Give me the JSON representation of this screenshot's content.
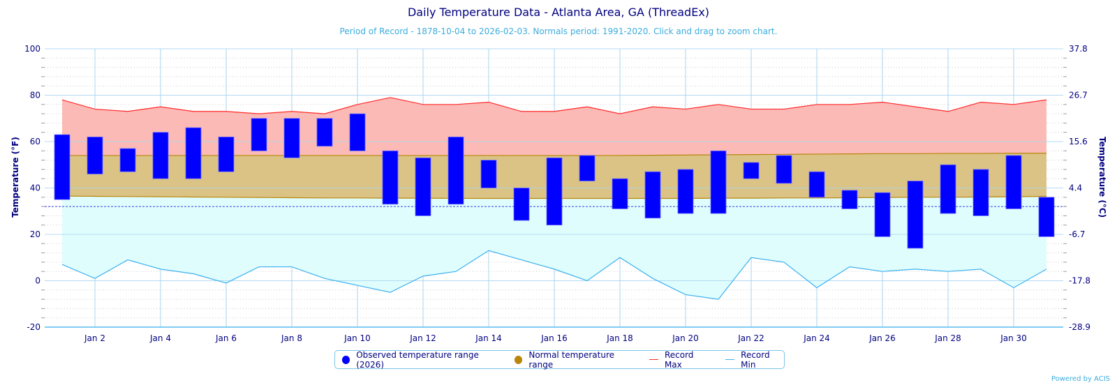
{
  "header": {
    "title": "Daily Temperature Data - Atlanta Area, GA (ThreadEx)",
    "subtitle": "Period of Record - 1878-10-04 to 2026-02-03. Normals period: 1991-2020. Click and drag to zoom chart."
  },
  "footer": {
    "credit": "Powered by ACIS"
  },
  "colors": {
    "observed": "#0000ff",
    "normal": "#b8860b",
    "normal_fill": "#dac384",
    "record_max": "#ff2a2a",
    "record_max_fill": "#fbbab6",
    "record_min": "#3bb0f0",
    "record_min_fill": "#e0fdfd",
    "text": "#000080",
    "freezing": "#3344dd"
  },
  "chart_data": {
    "type": "bar",
    "title": "Daily Temperature Data - Atlanta Area, GA (ThreadEx)",
    "xlabel": "",
    "ylabel": "Temperature (°F)",
    "ylabel_right": "Temperature (°C)",
    "ylim": [
      -20,
      100
    ],
    "yticks": [
      100,
      80,
      60,
      40,
      20,
      0,
      -20
    ],
    "yticks_right": [
      "37.8",
      "26.7",
      "15.6",
      "4.4",
      "-6.7",
      "-17.8",
      "-28.9"
    ],
    "xtick_labels": [
      "Jan 2",
      "Jan 4",
      "Jan 6",
      "Jan 8",
      "Jan 10",
      "Jan 12",
      "Jan 14",
      "Jan 16",
      "Jan 18",
      "Jan 20",
      "Jan 22",
      "Jan 24",
      "Jan 26",
      "Jan 28",
      "Jan 30"
    ],
    "xtick_days": [
      2,
      4,
      6,
      8,
      10,
      12,
      14,
      16,
      18,
      20,
      22,
      24,
      26,
      28,
      30
    ],
    "days": [
      1,
      2,
      3,
      4,
      5,
      6,
      7,
      8,
      9,
      10,
      11,
      12,
      13,
      14,
      15,
      16,
      17,
      18,
      19,
      20,
      21,
      22,
      23,
      24,
      25,
      26,
      27,
      28,
      29,
      30,
      31
    ],
    "grid": true,
    "freezing_line": 32,
    "legend_position": "bottom-center",
    "series": [
      {
        "name": "Observed temperature range (2026)",
        "kind": "range-bar",
        "high": [
          63,
          62,
          57,
          64,
          66,
          62,
          70,
          70,
          70,
          72,
          56,
          53,
          62,
          52,
          40,
          53,
          54,
          44,
          47,
          48,
          56,
          51,
          54,
          47,
          39,
          38,
          43,
          50,
          48,
          54,
          36
        ],
        "low": [
          35,
          46,
          47,
          44,
          44,
          47,
          56,
          53,
          58,
          56,
          33,
          28,
          33,
          40,
          26,
          24,
          43,
          31,
          27,
          29,
          29,
          44,
          42,
          36,
          31,
          19,
          14,
          29,
          28,
          31,
          19
        ]
      },
      {
        "name": "Normal temperature range",
        "kind": "area-range",
        "high": [
          54,
          54,
          54,
          54,
          54,
          54,
          54,
          54,
          54,
          54,
          54,
          54,
          54,
          54,
          54,
          54,
          54,
          54,
          54.1,
          54.2,
          54.3,
          54.4,
          54.5,
          54.6,
          54.7,
          54.8,
          54.8,
          54.9,
          54.9,
          55,
          55
        ],
        "low": [
          36.5,
          36.4,
          36.3,
          36.2,
          36.1,
          36,
          35.9,
          35.8,
          35.7,
          35.7,
          35.6,
          35.6,
          35.5,
          35.5,
          35.5,
          35.5,
          35.5,
          35.5,
          35.5,
          35.5,
          35.6,
          35.6,
          35.7,
          35.7,
          35.8,
          35.9,
          36,
          36,
          36.1,
          36.2,
          36.4
        ]
      },
      {
        "name": "Record Max",
        "kind": "line",
        "values": [
          78,
          74,
          73,
          75,
          73,
          73,
          72,
          73,
          72,
          76,
          79,
          76,
          76,
          77,
          73,
          73,
          75,
          72,
          75,
          74,
          76,
          74,
          74,
          76,
          76,
          77,
          75,
          73,
          77,
          76,
          78
        ]
      },
      {
        "name": "Record Min",
        "kind": "line",
        "values": [
          7,
          1,
          9,
          5,
          3,
          -1,
          6,
          6,
          1,
          -2,
          -5,
          2,
          4,
          13,
          9,
          5,
          0,
          10,
          1,
          -6,
          -8,
          10,
          8,
          -3,
          6,
          4,
          5,
          4,
          5,
          -3,
          5
        ]
      }
    ]
  }
}
